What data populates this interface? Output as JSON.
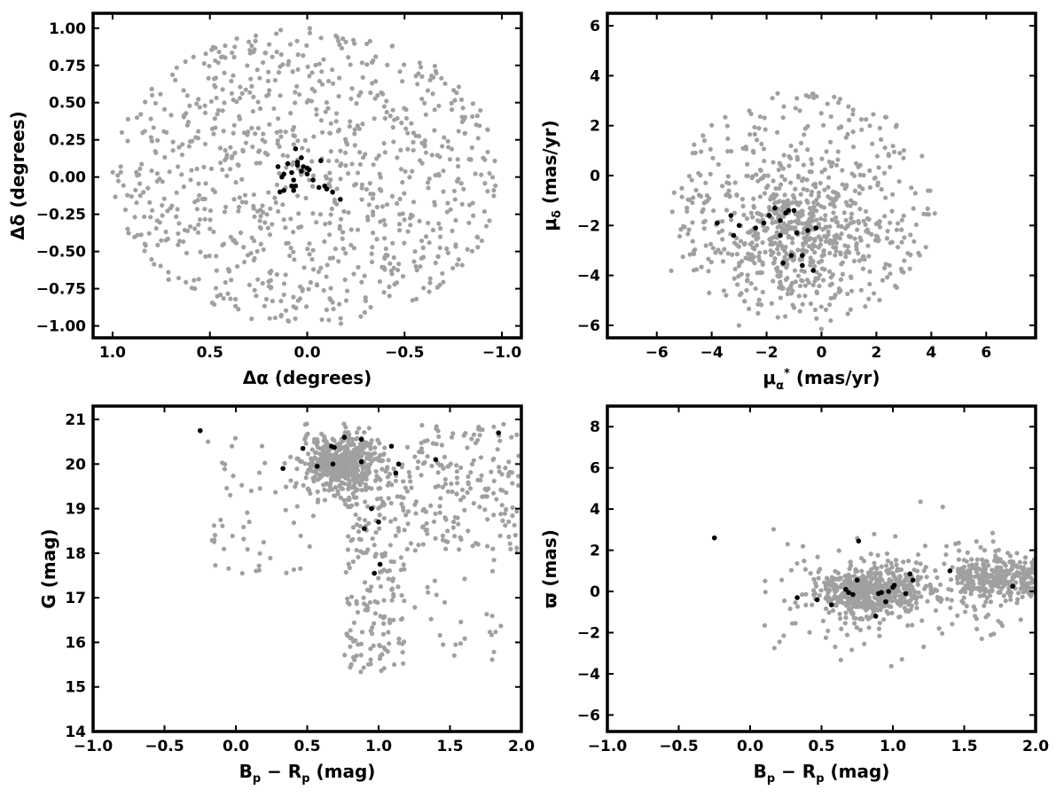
{
  "colors": {
    "field_stars": "#a0a0a0",
    "members": "#000000",
    "frame": "#000000",
    "background": "#ffffff"
  },
  "chart_data": [
    {
      "type": "scatter",
      "panel": "top-left",
      "xlabel": "Δα (degrees)",
      "ylabel": "Δδ (degrees)",
      "xlim": [
        1.1,
        -1.1
      ],
      "ylim": [
        -1.08,
        1.1
      ],
      "x_inverted": true,
      "xticks": [
        1.0,
        0.5,
        0.0,
        -0.5,
        -1.0
      ],
      "xtick_labels": [
        "1.0",
        "0.5",
        "0.0",
        "−0.5",
        "−1.0"
      ],
      "yticks": [
        1.0,
        0.75,
        0.5,
        0.25,
        0.0,
        -0.25,
        -0.5,
        -0.75,
        -1.0
      ],
      "ytick_labels": [
        "1.00",
        "0.75",
        "0.50",
        "0.25",
        "0.00",
        "−0.25",
        "−0.50",
        "−0.75",
        "−1.00"
      ],
      "grid": false,
      "field": {
        "name": "",
        "distribution": "uniform within circle",
        "center": [
          0,
          0
        ],
        "radius": 1.0,
        "count": 900
      },
      "series": [
        {
          "name": "",
          "color": "#000000",
          "points": [
            [
              0.12,
              0.02
            ],
            [
              0.1,
              0.09
            ],
            [
              0.06,
              0.19
            ],
            [
              0.05,
              0.1
            ],
            [
              0.03,
              0.04
            ],
            [
              0.0,
              0.02
            ],
            [
              0.02,
              0.07
            ],
            [
              0.12,
              -0.09
            ],
            [
              0.14,
              -0.1
            ],
            [
              0.08,
              -0.06
            ],
            [
              0.08,
              0.03
            ],
            [
              0.15,
              0.07
            ],
            [
              0.13,
              0.0
            ],
            [
              0.07,
              -0.02
            ],
            [
              0.07,
              -0.09
            ],
            [
              0.06,
              -0.06
            ],
            [
              0.05,
              0.08
            ],
            [
              0.03,
              0.13
            ],
            [
              -0.01,
              0.05
            ],
            [
              -0.03,
              -0.02
            ],
            [
              -0.06,
              -0.07
            ],
            [
              -0.09,
              -0.06
            ],
            [
              -0.1,
              -0.08
            ],
            [
              -0.13,
              -0.1
            ],
            [
              -0.17,
              -0.15
            ],
            [
              -0.07,
              0.11
            ],
            [
              0.0,
              0.06
            ]
          ]
        }
      ]
    },
    {
      "type": "scatter",
      "panel": "top-right",
      "xlabel": "μα* (mas/yr)",
      "ylabel": "μδ (mas/yr)",
      "xlim": [
        -7.8,
        7.8
      ],
      "ylim": [
        -6.5,
        6.5
      ],
      "xticks": [
        -6,
        -4,
        -2,
        0,
        2,
        4,
        6
      ],
      "xtick_labels": [
        "−6",
        "−4",
        "−2",
        "0",
        "2",
        "4",
        "6"
      ],
      "yticks": [
        -6,
        -4,
        -2,
        0,
        2,
        4,
        6
      ],
      "ytick_labels": [
        "−6",
        "−4",
        "−2",
        "0",
        "2",
        "4",
        "6"
      ],
      "grid": false,
      "field": {
        "name": "",
        "count": 850,
        "core_center": [
          -0.9,
          -2.1
        ],
        "core_sigma": [
          1.5,
          1.3
        ],
        "halo_center": [
          -0.6,
          -1.2
        ],
        "halo_extent": [
          4.8,
          4.6
        ]
      },
      "series": [
        {
          "name": "",
          "color": "#000000",
          "points": [
            [
              -3.8,
              -1.9
            ],
            [
              -3.3,
              -1.6
            ],
            [
              -3.2,
              -2.4
            ],
            [
              -3.0,
              -2.0
            ],
            [
              -2.4,
              -2.1
            ],
            [
              -2.1,
              -1.9
            ],
            [
              -1.9,
              -1.6
            ],
            [
              -1.7,
              -1.3
            ],
            [
              -1.5,
              -1.8
            ],
            [
              -1.4,
              -3.5
            ],
            [
              -1.3,
              -1.5
            ],
            [
              -1.2,
              -1.4
            ],
            [
              -1.0,
              -1.4
            ],
            [
              -0.9,
              -2.3
            ],
            [
              -1.1,
              -3.2
            ],
            [
              -0.7,
              -3.2
            ],
            [
              -0.7,
              -3.6
            ],
            [
              -0.5,
              -2.2
            ],
            [
              -0.3,
              -3.8
            ],
            [
              -0.2,
              -2.1
            ],
            [
              -1.5,
              -2.4
            ]
          ]
        }
      ]
    },
    {
      "type": "scatter",
      "panel": "bottom-left",
      "xlabel": "Bp − Rp (mag)",
      "ylabel": "G (mag)",
      "xlim": [
        -1.0,
        2.0
      ],
      "ylim": [
        14.0,
        21.3
      ],
      "xticks": [
        -1.0,
        -0.5,
        0.0,
        0.5,
        1.0,
        1.5,
        2.0
      ],
      "xtick_labels": [
        "−1.0",
        "−0.5",
        "0.0",
        "0.5",
        "1.0",
        "1.5",
        "2.0"
      ],
      "yticks": [
        14,
        15,
        16,
        17,
        18,
        19,
        20,
        21
      ],
      "ytick_labels": [
        "14",
        "15",
        "16",
        "17",
        "18",
        "19",
        "20",
        "21"
      ],
      "grid": false,
      "field": {
        "name": "",
        "count": 1000,
        "clump_center": [
          0.75,
          20.0
        ],
        "clump_sigma": [
          0.13,
          0.32
        ]
      },
      "series": [
        {
          "name": "",
          "color": "#000000",
          "points": [
            [
              -0.25,
              20.75
            ],
            [
              0.33,
              19.9
            ],
            [
              0.47,
              20.35
            ],
            [
              0.57,
              19.95
            ],
            [
              0.67,
              20.4
            ],
            [
              0.69,
              20.37
            ],
            [
              0.68,
              20.0
            ],
            [
              0.76,
              20.6
            ],
            [
              0.88,
              20.55
            ],
            [
              0.88,
              20.05
            ],
            [
              0.9,
              18.55
            ],
            [
              0.95,
              19.0
            ],
            [
              0.97,
              17.55
            ],
            [
              1.0,
              18.7
            ],
            [
              1.01,
              17.75
            ],
            [
              1.09,
              20.4
            ],
            [
              1.12,
              19.8
            ],
            [
              1.14,
              20.0
            ],
            [
              1.4,
              20.1
            ],
            [
              1.84,
              20.7
            ]
          ]
        }
      ]
    },
    {
      "type": "scatter",
      "panel": "bottom-right",
      "xlabel": "Bp − Rp (mag)",
      "ylabel": "ϖ (mas)",
      "xlim": [
        -1.0,
        2.0
      ],
      "ylim": [
        -6.8,
        9.0
      ],
      "xticks": [
        -1.0,
        -0.5,
        0.0,
        0.5,
        1.0,
        1.5,
        2.0
      ],
      "xtick_labels": [
        "−1.0",
        "−0.5",
        "0.0",
        "0.5",
        "1.0",
        "1.5",
        "2.0"
      ],
      "yticks": [
        -6,
        -4,
        -2,
        0,
        2,
        4,
        6,
        8
      ],
      "ytick_labels": [
        "−6",
        "−4",
        "−2",
        "0",
        "2",
        "4",
        "6",
        "8"
      ],
      "grid": false,
      "field": {
        "name": "",
        "count": 1000,
        "core_center": [
          0.85,
          0.0
        ],
        "core_sigma": [
          0.18,
          0.55
        ]
      },
      "series": [
        {
          "name": "",
          "color": "#000000",
          "points": [
            [
              -0.25,
              2.6
            ],
            [
              0.33,
              -0.3
            ],
            [
              0.47,
              -0.4
            ],
            [
              0.57,
              -0.65
            ],
            [
              0.67,
              0.1
            ],
            [
              0.69,
              -0.05
            ],
            [
              0.72,
              -0.15
            ],
            [
              0.75,
              0.55
            ],
            [
              0.76,
              2.45
            ],
            [
              0.88,
              -1.2
            ],
            [
              0.9,
              -0.1
            ],
            [
              0.92,
              -0.05
            ],
            [
              0.95,
              -0.5
            ],
            [
              0.97,
              0.0
            ],
            [
              1.0,
              0.2
            ],
            [
              1.01,
              0.3
            ],
            [
              1.09,
              -0.1
            ],
            [
              1.12,
              0.85
            ],
            [
              1.14,
              0.55
            ],
            [
              1.4,
              1.0
            ],
            [
              1.84,
              0.25
            ]
          ]
        }
      ]
    }
  ]
}
